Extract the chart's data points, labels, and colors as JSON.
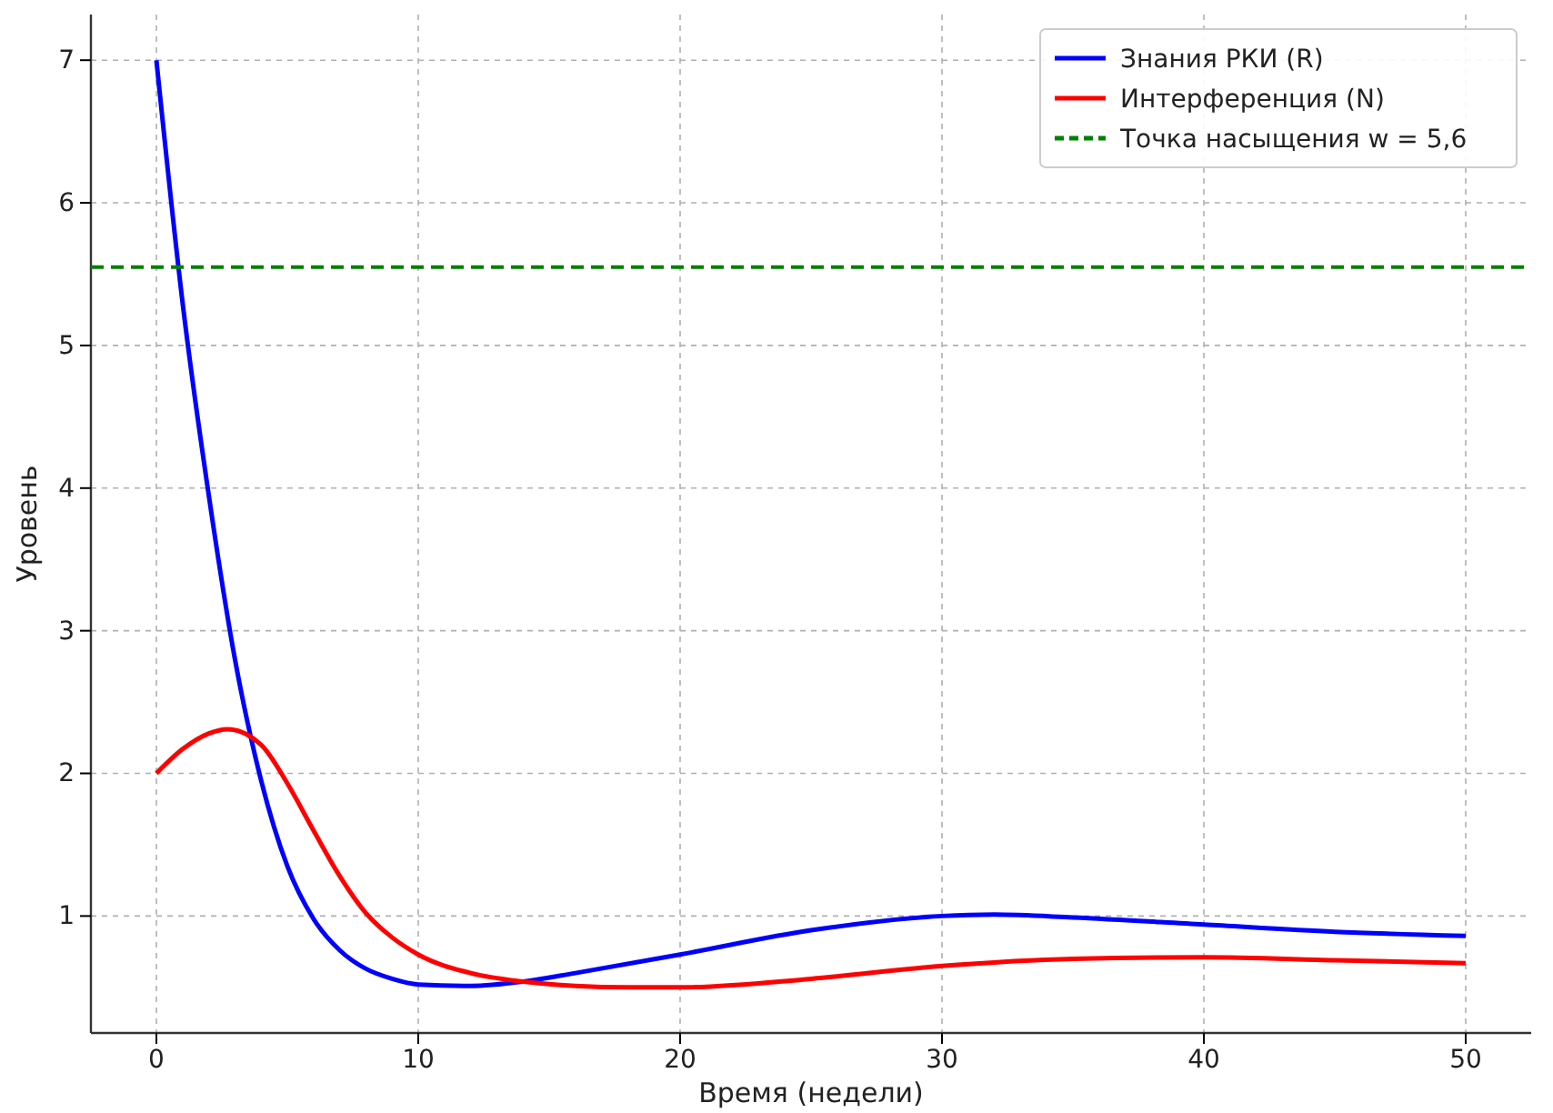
{
  "chart_data": {
    "type": "line",
    "xlabel": "Время (недели)",
    "ylabel": "Уровень",
    "xlim": [
      -2.5,
      52.5
    ],
    "xticks": [
      0,
      10,
      20,
      30,
      40,
      50
    ],
    "ylim": [
      0.18,
      7.32
    ],
    "yticks": [
      1,
      2,
      3,
      4,
      5,
      6,
      7
    ],
    "grid": true,
    "legend": "top right",
    "line_style": "solid",
    "marker": "none",
    "series": [
      {
        "name": "Знания РКИ (R)",
        "color": "#0000ff",
        "x": [
          0,
          1,
          2,
          3,
          4,
          5,
          6,
          7,
          8,
          9,
          10,
          12,
          14,
          16,
          20,
          25,
          30,
          32,
          35,
          40,
          45,
          50
        ],
        "values": [
          7,
          5.3,
          3.95,
          2.8,
          1.95,
          1.35,
          0.98,
          0.76,
          0.63,
          0.56,
          0.52,
          0.51,
          0.54,
          0.6,
          0.73,
          0.9,
          1.0,
          1.01,
          0.99,
          0.94,
          0.89,
          0.86
        ]
      },
      {
        "name": "Интерференция (N)",
        "color": "#ff0000",
        "x": [
          0,
          1,
          2,
          2.7,
          4,
          5,
          6,
          7,
          8,
          9,
          10,
          12,
          14,
          16,
          18,
          20,
          25,
          30,
          35,
          40,
          45,
          50
        ],
        "values": [
          2,
          2.17,
          2.28,
          2.31,
          2.2,
          1.93,
          1.6,
          1.28,
          1.02,
          0.85,
          0.73,
          0.6,
          0.54,
          0.51,
          0.5,
          0.5,
          0.56,
          0.65,
          0.7,
          0.71,
          0.69,
          0.67
        ]
      }
    ],
    "ref_lines": [
      {
        "axis": "y",
        "value": 5.55,
        "label": "Точка насыщения w = 5,6",
        "color": "#008000",
        "line_style": "dashed"
      }
    ]
  }
}
